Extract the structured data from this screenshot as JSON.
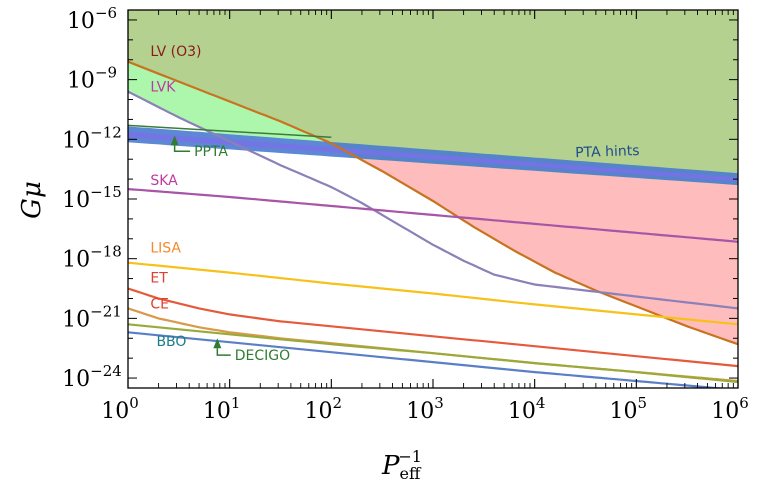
{
  "chart_data": {
    "type": "line",
    "title": "",
    "xlabel": {
      "base": "P",
      "sub": "eff",
      "sup": "−1"
    },
    "ylabel": "Gμ",
    "xscale": "log",
    "yscale": "log",
    "xlim_log10": [
      0,
      6
    ],
    "ylim_log10": [
      -24.5,
      -5.5
    ],
    "x_ticks": [
      {
        "base": "10",
        "exp": "0"
      },
      {
        "base": "10",
        "exp": "1"
      },
      {
        "base": "10",
        "exp": "2"
      },
      {
        "base": "10",
        "exp": "3"
      },
      {
        "base": "10",
        "exp": "4"
      },
      {
        "base": "10",
        "exp": "5"
      },
      {
        "base": "10",
        "exp": "6"
      }
    ],
    "y_ticks": [
      {
        "base": "10",
        "exp": "−6"
      },
      {
        "base": "10",
        "exp": "−9"
      },
      {
        "base": "10",
        "exp": "−12"
      },
      {
        "base": "10",
        "exp": "−15"
      },
      {
        "base": "10",
        "exp": "−18"
      },
      {
        "base": "10",
        "exp": "−21"
      },
      {
        "base": "10",
        "exp": "−24"
      }
    ],
    "regions": [
      {
        "name": "excluded",
        "color": "#b4d18f",
        "description": "green region above LV (O3)"
      },
      {
        "name": "LVK",
        "color": "#adf7ad"
      },
      {
        "name": "PTA-excluded",
        "color": "#ffbcbc"
      }
    ],
    "pta_band": {
      "label": "PTA hints",
      "color": "#4a7bd1",
      "inner_color": "#7b6fe8",
      "x_log10": [
        0,
        6
      ],
      "upper_log10": [
        -11.35,
        -13.7
      ],
      "lower_log10": [
        -12.15,
        -14.3
      ]
    },
    "series": [
      {
        "name": "LV (O3)",
        "color": "#c8731f",
        "label_color": "#8b1a1a",
        "x_log10": [
          0,
          0.5,
          1,
          1.5,
          2,
          2.5,
          3,
          3.4,
          3.8,
          4.2,
          4.6,
          5,
          5.5,
          6
        ],
        "y_log10": [
          -8.1,
          -9.1,
          -10.1,
          -11.1,
          -12.2,
          -13.6,
          -15.1,
          -16.4,
          -17.6,
          -18.7,
          -19.6,
          -20.4,
          -21.4,
          -22.3
        ]
      },
      {
        "name": "LVK",
        "color": "#8b80b8",
        "label_color": "#c0399e",
        "x_log10": [
          0,
          0.5,
          1,
          1.5,
          2,
          2.3,
          2.6,
          3,
          3.3,
          3.6,
          4,
          4.5,
          5,
          5.5,
          6
        ],
        "y_log10": [
          -9.6,
          -10.9,
          -12.1,
          -13.3,
          -14.4,
          -15.2,
          -16.1,
          -17.3,
          -18.1,
          -18.8,
          -19.3,
          -19.6,
          -19.9,
          -20.2,
          -20.5
        ]
      },
      {
        "name": "PPTA",
        "color": "#3a7d3a",
        "label_color": "#2e7d32",
        "x_log10": [
          0,
          0.5,
          1,
          1.5,
          2
        ],
        "y_log10": [
          -11.3,
          -11.45,
          -11.6,
          -11.75,
          -11.9
        ]
      },
      {
        "name": "SKA",
        "color": "#a855a8",
        "label_color": "#c0399e",
        "x_log10": [
          0,
          1,
          2,
          3,
          4,
          5,
          6
        ],
        "y_log10": [
          -14.5,
          -14.9,
          -15.35,
          -15.8,
          -16.25,
          -16.7,
          -17.15
        ]
      },
      {
        "name": "LISA",
        "color": "#f6c21a",
        "label_color": "#f28a2e",
        "x_log10": [
          0,
          1,
          2,
          3,
          4,
          5,
          6
        ],
        "y_log10": [
          -18.2,
          -18.7,
          -19.25,
          -19.75,
          -20.3,
          -20.8,
          -21.3
        ]
      },
      {
        "name": "ET",
        "color": "#e65a3c",
        "label_color": "#e23d2e",
        "x_log10": [
          0,
          0.3,
          0.7,
          1,
          1.5,
          2,
          3,
          4,
          5,
          6
        ],
        "y_log10": [
          -19.5,
          -20.0,
          -20.5,
          -20.8,
          -21.15,
          -21.4,
          -21.9,
          -22.4,
          -22.9,
          -23.4
        ]
      },
      {
        "name": "CE",
        "color": "#d89a4a",
        "label_color": "#e23d2e",
        "x_log10": [
          0,
          0.3,
          0.7,
          1,
          1.5,
          2,
          3,
          4,
          5,
          6
        ],
        "y_log10": [
          -20.5,
          -21.0,
          -21.45,
          -21.7,
          -22.0,
          -22.25,
          -22.75,
          -23.25,
          -23.7,
          -24.15
        ]
      },
      {
        "name": "DECIGO",
        "color": "#9aaa3a",
        "label_color": "#2e7d32",
        "x_log10": [
          0,
          1,
          2,
          3,
          4,
          5,
          6
        ],
        "y_log10": [
          -21.3,
          -21.8,
          -22.3,
          -22.75,
          -23.25,
          -23.7,
          -24.2
        ]
      },
      {
        "name": "BBO",
        "color": "#5b7fc7",
        "label_color": "#1e7b8a",
        "x_log10": [
          0,
          1,
          2,
          3,
          4,
          5,
          6
        ],
        "y_log10": [
          -21.7,
          -22.2,
          -22.7,
          -23.2,
          -23.7,
          -24.15,
          -24.6
        ]
      }
    ],
    "annotations": [
      {
        "text": "LV (O3)",
        "color": "#8b1a1a",
        "at_log10": [
          0.22,
          -7.8
        ]
      },
      {
        "text": "LVK",
        "color": "#c0399e",
        "at_log10": [
          0.22,
          -9.6
        ]
      },
      {
        "text": "PPTA",
        "color": "#2e7d32",
        "at_log10": [
          0.65,
          -12.85
        ],
        "arrow_to_log10": [
          0.38,
          -11.8
        ]
      },
      {
        "text": "SKA",
        "color": "#c0399e",
        "at_log10": [
          0.22,
          -14.3
        ]
      },
      {
        "text": "LISA",
        "color": "#f28a2e",
        "at_log10": [
          0.22,
          -17.7
        ]
      },
      {
        "text": "ET",
        "color": "#e23d2e",
        "at_log10": [
          0.22,
          -19.2
        ]
      },
      {
        "text": "CE",
        "color": "#e23d2e",
        "at_log10": [
          0.22,
          -20.5
        ]
      },
      {
        "text": "BBO",
        "color": "#1e7b8a",
        "at_log10": [
          0.28,
          -22.4
        ]
      },
      {
        "text": "DECIGO",
        "color": "#2e7d32",
        "at_log10": [
          1.05,
          -23.1
        ],
        "arrow_to_log10": [
          0.8,
          -22.0
        ]
      },
      {
        "text": "PTA hints",
        "color": "#1f4e8c",
        "at_log10": [
          4.4,
          -12.9
        ]
      }
    ]
  }
}
